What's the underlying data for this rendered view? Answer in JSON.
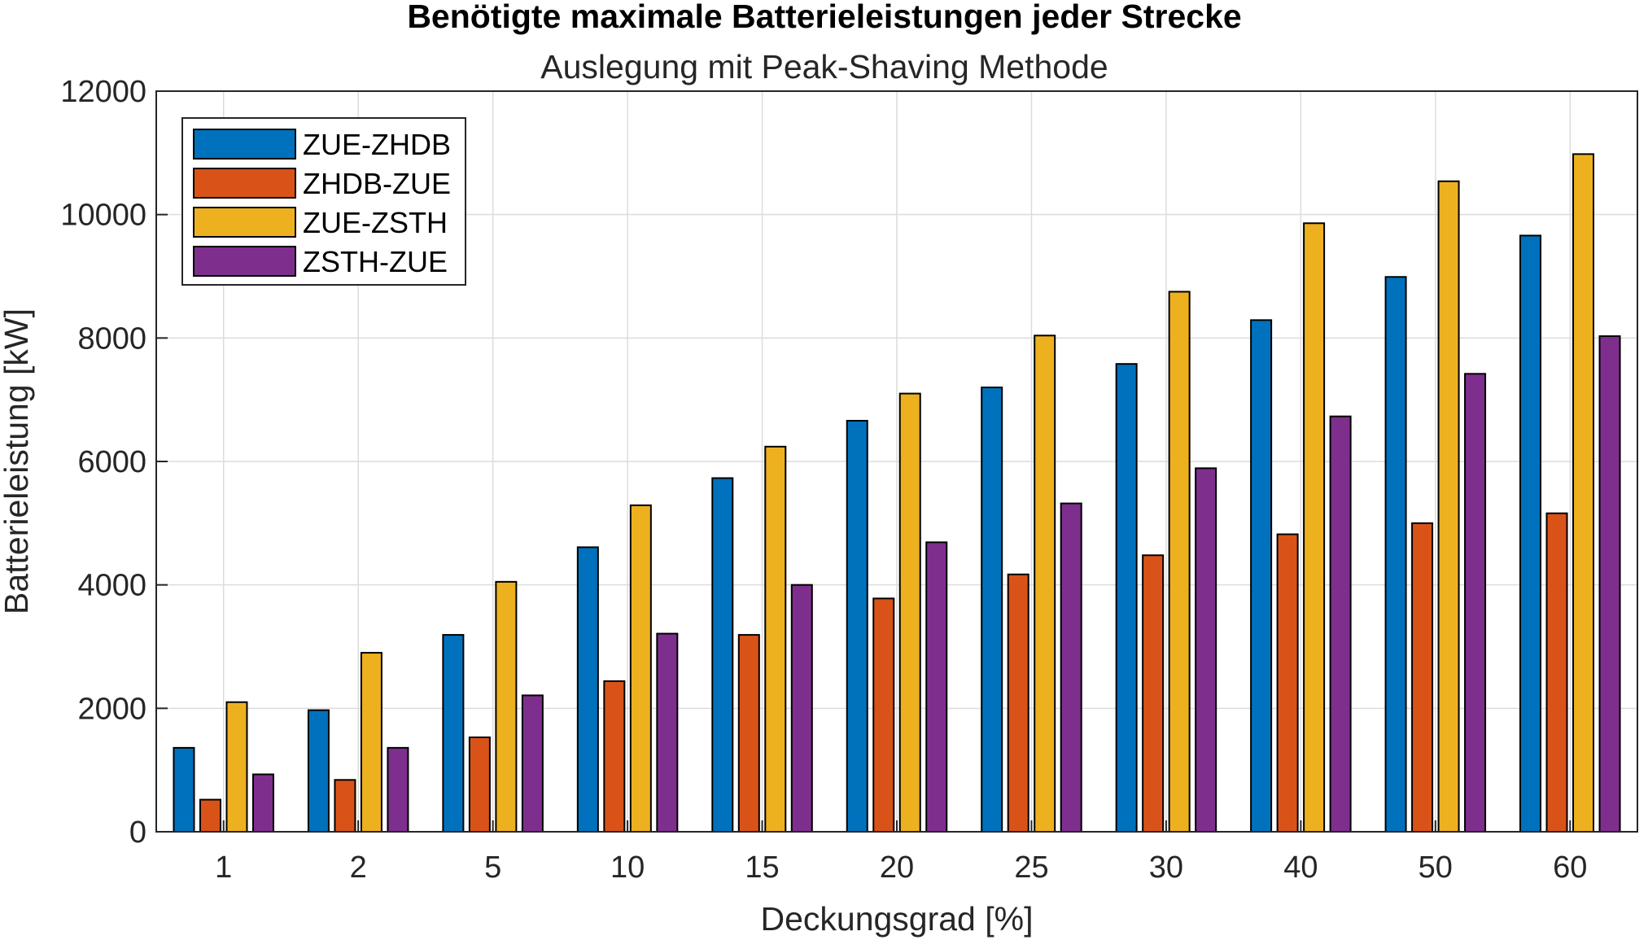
{
  "chart_data": {
    "type": "bar",
    "title": "Benötigte maximale Batterieleistungen jeder Strecke",
    "subtitle": "Auslegung mit Peak-Shaving Methode",
    "xlabel": "Deckungsgrad [%]",
    "ylabel": "Batterieleistung [kW]",
    "ylim": [
      0,
      12000
    ],
    "yticks": [
      0,
      2000,
      4000,
      6000,
      8000,
      10000,
      12000
    ],
    "grid": true,
    "legend_position": "top-left",
    "categories": [
      "1",
      "2",
      "5",
      "10",
      "15",
      "20",
      "25",
      "30",
      "40",
      "50",
      "60"
    ],
    "series": [
      {
        "name": "ZUE-ZHDB",
        "color": "#0072BD",
        "values": [
          1360,
          1970,
          3190,
          4610,
          5730,
          6660,
          7200,
          7580,
          8290,
          8990,
          9660
        ]
      },
      {
        "name": "ZHDB-ZUE",
        "color": "#D95319",
        "values": [
          520,
          840,
          1530,
          2440,
          3190,
          3780,
          4170,
          4480,
          4820,
          5000,
          5160
        ]
      },
      {
        "name": "ZUE-ZSTH",
        "color": "#EDB120",
        "values": [
          2100,
          2900,
          4050,
          5290,
          6240,
          7100,
          8040,
          8750,
          9860,
          10540,
          10980
        ]
      },
      {
        "name": "ZSTH-ZUE",
        "color": "#7E2F8E",
        "values": [
          930,
          1360,
          2210,
          3210,
          4000,
          4690,
          5320,
          5890,
          6730,
          7420,
          8030
        ]
      }
    ]
  }
}
